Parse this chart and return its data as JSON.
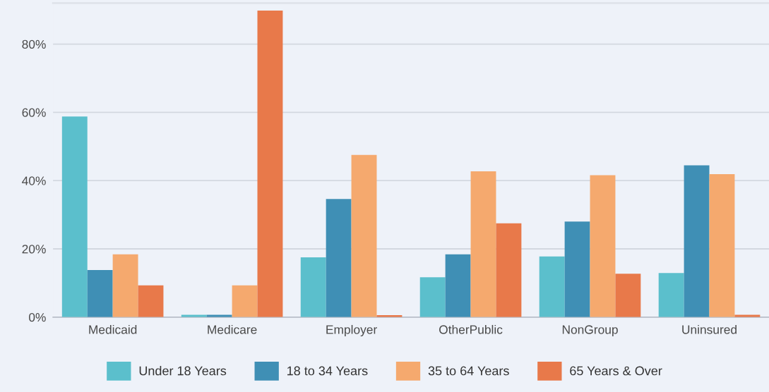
{
  "chart_data": {
    "type": "bar",
    "categories": [
      "Medicaid",
      "Medicare",
      "Employer",
      "OtherPublic",
      "NonGroup",
      "Uninsured"
    ],
    "series": [
      {
        "name": "Under 18 Years",
        "color": "#5bbfcc",
        "values": [
          58.8,
          0.7,
          17.5,
          11.7,
          17.8,
          12.9
        ]
      },
      {
        "name": "18 to 34 Years",
        "color": "#3f8fb5",
        "values": [
          13.8,
          0.7,
          34.6,
          18.4,
          28.0,
          44.5
        ]
      },
      {
        "name": "35 to 64 Years",
        "color": "#f5a96e",
        "values": [
          18.4,
          9.3,
          47.5,
          42.7,
          41.6,
          41.9
        ]
      },
      {
        "name": "65 Years & Over",
        "color": "#e8794a",
        "values": [
          9.3,
          89.8,
          0.6,
          27.5,
          12.7,
          0.7
        ]
      }
    ],
    "ylim": [
      0,
      92
    ],
    "yticks": [
      {
        "value": 0,
        "label": "0%"
      },
      {
        "value": 20,
        "label": "20%"
      },
      {
        "value": 40,
        "label": "40%"
      },
      {
        "value": 60,
        "label": "60%"
      },
      {
        "value": 80,
        "label": "80%"
      }
    ],
    "grid": "y",
    "legend": "bottom"
  }
}
